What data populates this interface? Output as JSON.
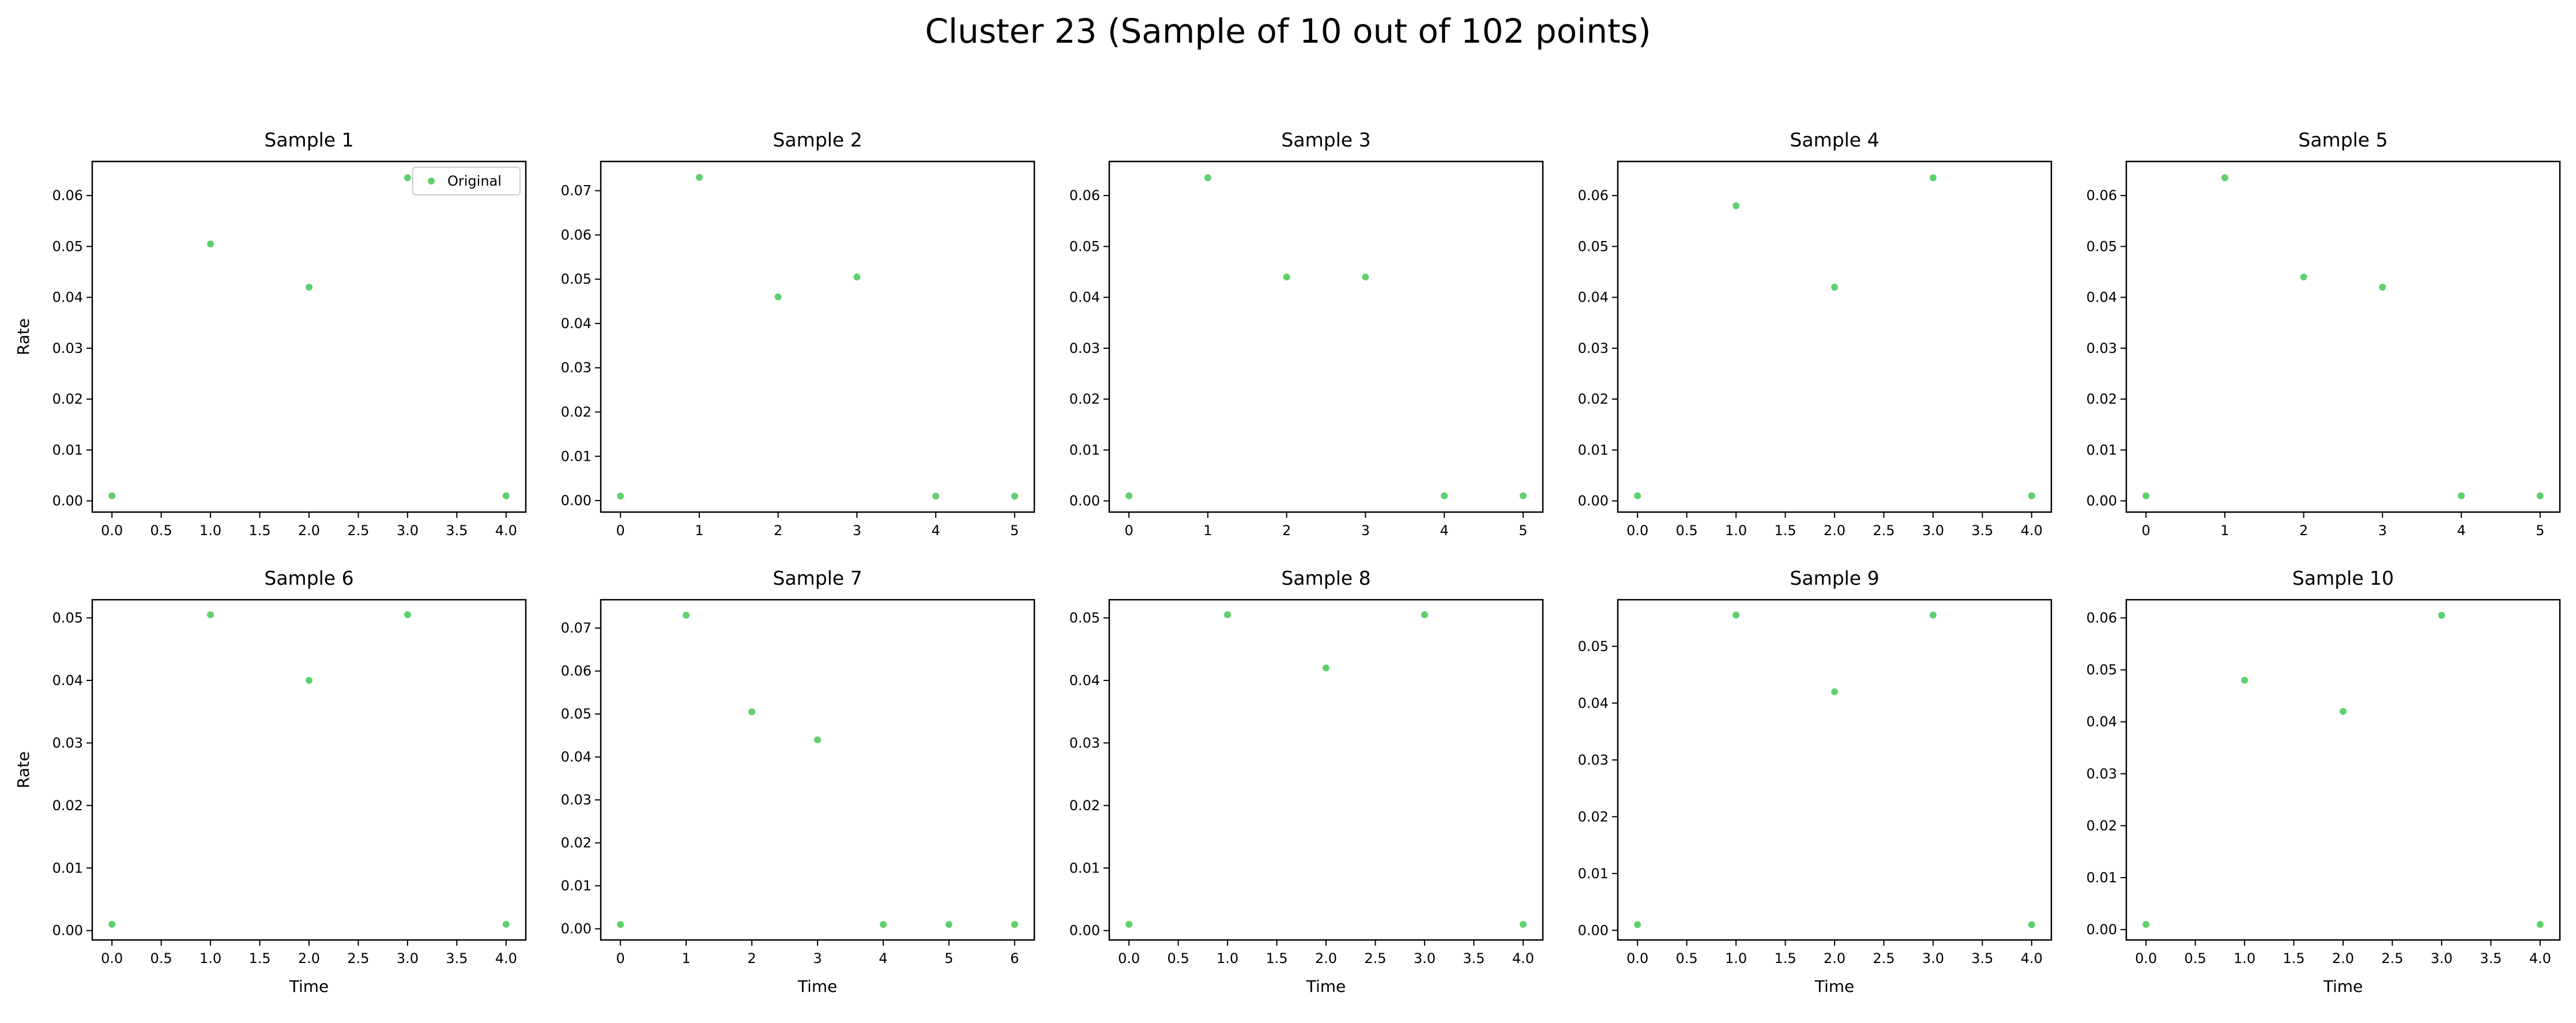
{
  "figure": {
    "title": "Cluster 23 (Sample of 10 out of 102 points)",
    "marker_color": "#5fd06e",
    "legend_label": "Original"
  },
  "chart_data": [
    {
      "type": "scatter",
      "title": "Sample 1",
      "xlabel": "",
      "ylabel": "Rate",
      "x": [
        0,
        1,
        2,
        3,
        4
      ],
      "y": [
        0.001,
        0.0505,
        0.042,
        0.0635,
        0.001
      ],
      "xlim": [
        -0.2,
        4.2
      ],
      "ylim": [
        -0.0022,
        0.0667
      ],
      "xticks": [
        0,
        0.5,
        1,
        1.5,
        2,
        2.5,
        3,
        3.5,
        4
      ],
      "xticklabels": [
        "0.0",
        "0.5",
        "1.0",
        "1.5",
        "2.0",
        "2.5",
        "3.0",
        "3.5",
        "4.0"
      ],
      "yticks": [
        0,
        0.01,
        0.02,
        0.03,
        0.04,
        0.05,
        0.06
      ],
      "yticklabels": [
        "0.00",
        "0.01",
        "0.02",
        "0.03",
        "0.04",
        "0.05",
        "0.06"
      ],
      "legend": {
        "entries": [
          "Original"
        ],
        "position": "upper right"
      }
    },
    {
      "type": "scatter",
      "title": "Sample 2",
      "xlabel": "",
      "ylabel": "",
      "x": [
        0,
        1,
        2,
        3,
        4,
        5
      ],
      "y": [
        0.001,
        0.073,
        0.046,
        0.0505,
        0.001,
        0.001
      ],
      "xlim": [
        -0.25,
        5.25
      ],
      "ylim": [
        -0.0026,
        0.0766
      ],
      "xticks": [
        0,
        1,
        2,
        3,
        4,
        5
      ],
      "xticklabels": [
        "0",
        "1",
        "2",
        "3",
        "4",
        "5"
      ],
      "yticks": [
        0,
        0.01,
        0.02,
        0.03,
        0.04,
        0.05,
        0.06,
        0.07
      ],
      "yticklabels": [
        "0.00",
        "0.01",
        "0.02",
        "0.03",
        "0.04",
        "0.05",
        "0.06",
        "0.07"
      ]
    },
    {
      "type": "scatter",
      "title": "Sample 3",
      "xlabel": "",
      "ylabel": "",
      "x": [
        0,
        1,
        2,
        3,
        4,
        5
      ],
      "y": [
        0.001,
        0.0635,
        0.044,
        0.044,
        0.001,
        0.001
      ],
      "xlim": [
        -0.25,
        5.25
      ],
      "ylim": [
        -0.0022,
        0.0667
      ],
      "xticks": [
        0,
        1,
        2,
        3,
        4,
        5
      ],
      "xticklabels": [
        "0",
        "1",
        "2",
        "3",
        "4",
        "5"
      ],
      "yticks": [
        0,
        0.01,
        0.02,
        0.03,
        0.04,
        0.05,
        0.06
      ],
      "yticklabels": [
        "0.00",
        "0.01",
        "0.02",
        "0.03",
        "0.04",
        "0.05",
        "0.06"
      ]
    },
    {
      "type": "scatter",
      "title": "Sample 4",
      "xlabel": "",
      "ylabel": "",
      "x": [
        0,
        1,
        2,
        3,
        4
      ],
      "y": [
        0.001,
        0.058,
        0.042,
        0.0635,
        0.001
      ],
      "xlim": [
        -0.2,
        4.2
      ],
      "ylim": [
        -0.0022,
        0.0667
      ],
      "xticks": [
        0,
        0.5,
        1,
        1.5,
        2,
        2.5,
        3,
        3.5,
        4
      ],
      "xticklabels": [
        "0.0",
        "0.5",
        "1.0",
        "1.5",
        "2.0",
        "2.5",
        "3.0",
        "3.5",
        "4.0"
      ],
      "yticks": [
        0,
        0.01,
        0.02,
        0.03,
        0.04,
        0.05,
        0.06
      ],
      "yticklabels": [
        "0.00",
        "0.01",
        "0.02",
        "0.03",
        "0.04",
        "0.05",
        "0.06"
      ]
    },
    {
      "type": "scatter",
      "title": "Sample 5",
      "xlabel": "",
      "ylabel": "",
      "x": [
        0,
        1,
        2,
        3,
        4,
        5
      ],
      "y": [
        0.001,
        0.0635,
        0.044,
        0.042,
        0.001,
        0.001
      ],
      "xlim": [
        -0.25,
        5.25
      ],
      "ylim": [
        -0.0022,
        0.0667
      ],
      "xticks": [
        0,
        1,
        2,
        3,
        4,
        5
      ],
      "xticklabels": [
        "0",
        "1",
        "2",
        "3",
        "4",
        "5"
      ],
      "yticks": [
        0,
        0.01,
        0.02,
        0.03,
        0.04,
        0.05,
        0.06
      ],
      "yticklabels": [
        "0.00",
        "0.01",
        "0.02",
        "0.03",
        "0.04",
        "0.05",
        "0.06"
      ]
    },
    {
      "type": "scatter",
      "title": "Sample 6",
      "xlabel": "Time",
      "ylabel": "Rate",
      "x": [
        0,
        1,
        2,
        3,
        4
      ],
      "y": [
        0.001,
        0.0505,
        0.04,
        0.0505,
        0.001
      ],
      "xlim": [
        -0.2,
        4.2
      ],
      "ylim": [
        -0.0015,
        0.0529
      ],
      "xticks": [
        0,
        0.5,
        1,
        1.5,
        2,
        2.5,
        3,
        3.5,
        4
      ],
      "xticklabels": [
        "0.0",
        "0.5",
        "1.0",
        "1.5",
        "2.0",
        "2.5",
        "3.0",
        "3.5",
        "4.0"
      ],
      "yticks": [
        0,
        0.01,
        0.02,
        0.03,
        0.04,
        0.05
      ],
      "yticklabels": [
        "0.00",
        "0.01",
        "0.02",
        "0.03",
        "0.04",
        "0.05"
      ]
    },
    {
      "type": "scatter",
      "title": "Sample 7",
      "xlabel": "Time",
      "ylabel": "",
      "x": [
        0,
        1,
        2,
        3,
        4,
        5,
        6
      ],
      "y": [
        0.001,
        0.073,
        0.0505,
        0.044,
        0.001,
        0.001,
        0.001
      ],
      "xlim": [
        -0.3,
        6.3
      ],
      "ylim": [
        -0.0026,
        0.0766
      ],
      "xticks": [
        0,
        1,
        2,
        3,
        4,
        5,
        6
      ],
      "xticklabels": [
        "0",
        "1",
        "2",
        "3",
        "4",
        "5",
        "6"
      ],
      "yticks": [
        0,
        0.01,
        0.02,
        0.03,
        0.04,
        0.05,
        0.06,
        0.07
      ],
      "yticklabels": [
        "0.00",
        "0.01",
        "0.02",
        "0.03",
        "0.04",
        "0.05",
        "0.06",
        "0.07"
      ]
    },
    {
      "type": "scatter",
      "title": "Sample 8",
      "xlabel": "Time",
      "ylabel": "",
      "x": [
        0,
        1,
        2,
        3,
        4
      ],
      "y": [
        0.001,
        0.0505,
        0.042,
        0.0505,
        0.001
      ],
      "xlim": [
        -0.2,
        4.2
      ],
      "ylim": [
        -0.0015,
        0.0529
      ],
      "xticks": [
        0,
        0.5,
        1,
        1.5,
        2,
        2.5,
        3,
        3.5,
        4
      ],
      "xticklabels": [
        "0.0",
        "0.5",
        "1.0",
        "1.5",
        "2.0",
        "2.5",
        "3.0",
        "3.5",
        "4.0"
      ],
      "yticks": [
        0,
        0.01,
        0.02,
        0.03,
        0.04,
        0.05
      ],
      "yticklabels": [
        "0.00",
        "0.01",
        "0.02",
        "0.03",
        "0.04",
        "0.05"
      ]
    },
    {
      "type": "scatter",
      "title": "Sample 9",
      "xlabel": "Time",
      "ylabel": "",
      "x": [
        0,
        1,
        2,
        3,
        4
      ],
      "y": [
        0.001,
        0.0555,
        0.042,
        0.0555,
        0.001
      ],
      "xlim": [
        -0.2,
        4.2
      ],
      "ylim": [
        -0.0017,
        0.0582
      ],
      "xticks": [
        0,
        0.5,
        1,
        1.5,
        2,
        2.5,
        3,
        3.5,
        4
      ],
      "xticklabels": [
        "0.0",
        "0.5",
        "1.0",
        "1.5",
        "2.0",
        "2.5",
        "3.0",
        "3.5",
        "4.0"
      ],
      "yticks": [
        0,
        0.01,
        0.02,
        0.03,
        0.04,
        0.05
      ],
      "yticklabels": [
        "0.00",
        "0.01",
        "0.02",
        "0.03",
        "0.04",
        "0.05"
      ]
    },
    {
      "type": "scatter",
      "title": "Sample 10",
      "xlabel": "Time",
      "ylabel": "",
      "x": [
        0,
        1,
        2,
        3,
        4
      ],
      "y": [
        0.001,
        0.048,
        0.042,
        0.0605,
        0.001
      ],
      "xlim": [
        -0.2,
        4.2
      ],
      "ylim": [
        -0.002,
        0.0635
      ],
      "xticks": [
        0,
        0.5,
        1,
        1.5,
        2,
        2.5,
        3,
        3.5,
        4
      ],
      "xticklabels": [
        "0.0",
        "0.5",
        "1.0",
        "1.5",
        "2.0",
        "2.5",
        "3.0",
        "3.5",
        "4.0"
      ],
      "yticks": [
        0,
        0.01,
        0.02,
        0.03,
        0.04,
        0.05,
        0.06
      ],
      "yticklabels": [
        "0.00",
        "0.01",
        "0.02",
        "0.03",
        "0.04",
        "0.05",
        "0.06"
      ]
    }
  ]
}
